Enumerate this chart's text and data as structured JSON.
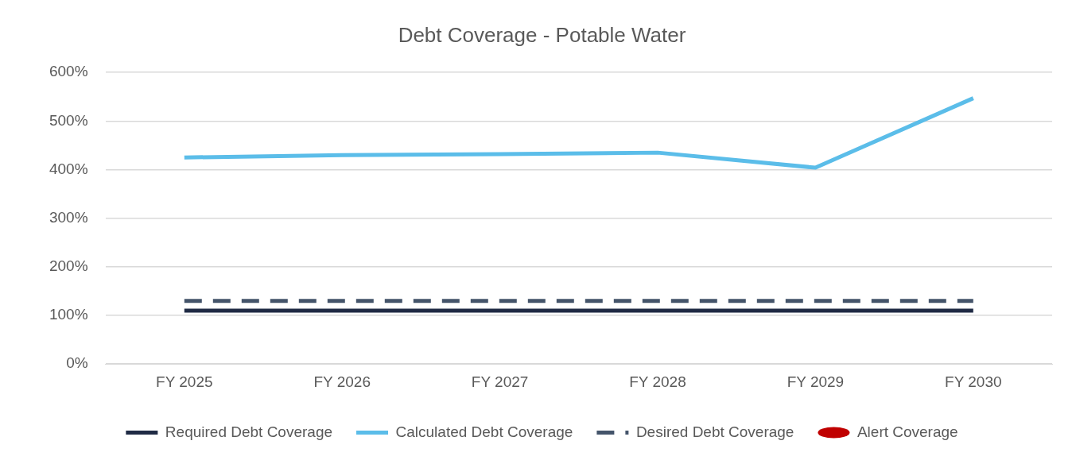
{
  "chart_data": {
    "type": "line",
    "title": "Debt Coverage - Potable Water",
    "categories": [
      "FY 2025",
      "FY 2026",
      "FY 2027",
      "FY 2028",
      "FY 2029",
      "FY 2030"
    ],
    "series": [
      {
        "name": "Required Debt Coverage",
        "color": "#1f2a44",
        "values": [
          110,
          110,
          110,
          110,
          110,
          110
        ],
        "line_style": "solid"
      },
      {
        "name": "Calculated Debt Coverage",
        "color": "#5bbde9",
        "values": [
          425,
          430,
          432,
          435,
          404,
          547
        ],
        "line_style": "solid"
      },
      {
        "name": "Desired Debt Coverage",
        "color": "#44546a",
        "values": [
          130,
          130,
          130,
          130,
          130,
          130
        ],
        "line_style": "dashed"
      },
      {
        "name": "Alert Coverage",
        "color": "#c00000",
        "type": "scatter",
        "marker": "circle",
        "values": [
          null,
          null,
          null,
          null,
          null,
          null
        ]
      }
    ],
    "ylim": [
      0,
      600
    ],
    "yticks": [
      {
        "value": 0,
        "label": "0%"
      },
      {
        "value": 100,
        "label": "100%"
      },
      {
        "value": 200,
        "label": "200%"
      },
      {
        "value": 300,
        "label": "300%"
      },
      {
        "value": 400,
        "label": "400%"
      },
      {
        "value": 500,
        "label": "500%"
      },
      {
        "value": 600,
        "label": "600%"
      }
    ],
    "grid": "y",
    "legend": "bottom",
    "marker": "none"
  }
}
